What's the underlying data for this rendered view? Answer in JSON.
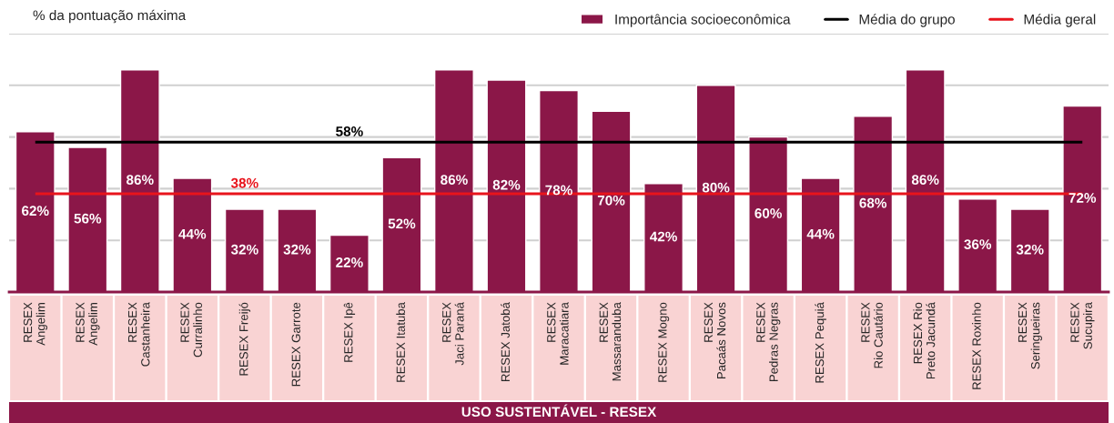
{
  "chart_data": {
    "type": "bar",
    "ylabel": "% da pontuação máxima",
    "xlabel": "USO SUSTENTÁVEL - RESEX",
    "categories": [
      "RESEX\nAngelim",
      "RESEX\nAngelim",
      "RESEX\nCastanheira",
      "RESEX\nCurralinho",
      "RESEX Freijó",
      "RESEX Garrote",
      "RESEX Ipê",
      "RESEX Itatuba",
      "RESEX\nJaci Paraná",
      "RESEX Jatobá",
      "RESEX\nMaracatiara",
      "RESEX\nMassaranduba",
      "RESEX Mogno",
      "RESEX\nPacaás Novos",
      "RESEX\nPedras Negras",
      "RESEX Pequiá",
      "RESEX\nRio Cautário",
      "RESEX Rio\nPreto Jacundá",
      "RESEX Roxinho",
      "RESEX\nSeringueiras",
      "RESEX\nSucupira"
    ],
    "series": [
      {
        "name": "Importância socioeconômica",
        "color": "#8b1748",
        "values": [
          62,
          56,
          86,
          44,
          32,
          32,
          22,
          52,
          86,
          82,
          78,
          70,
          42,
          80,
          60,
          44,
          68,
          86,
          36,
          32,
          72
        ],
        "value_labels": [
          "62%",
          "56%",
          "86%",
          "44%",
          "32%",
          "32%",
          "22%",
          "52%",
          "86%",
          "82%",
          "78%",
          "70%",
          "42%",
          "80%",
          "60%",
          "44%",
          "68%",
          "86%",
          "36%",
          "32%",
          "72%"
        ]
      }
    ],
    "ref_lines": [
      {
        "axis": "y",
        "value": 58,
        "label": "Média do grupo",
        "color": "#000000"
      },
      {
        "axis": "y",
        "value": 38,
        "label": "Média geral",
        "color": "#e8141c"
      }
    ],
    "annotations": [
      {
        "text": "58%",
        "x": "RESEX Ipê",
        "y": 58
      },
      {
        "text": "38%",
        "x": "RESEX Freijó",
        "y": 38
      }
    ],
    "ylim": [
      0,
      100
    ],
    "yticks": [
      {
        "value": 20,
        "label": null
      },
      {
        "value": 40,
        "label": null
      },
      {
        "value": 60,
        "label": null
      },
      {
        "value": 80,
        "label": null
      },
      {
        "value": 100,
        "label": null
      }
    ],
    "grid": "y",
    "tick_labels": "x",
    "legend": "top right"
  }
}
